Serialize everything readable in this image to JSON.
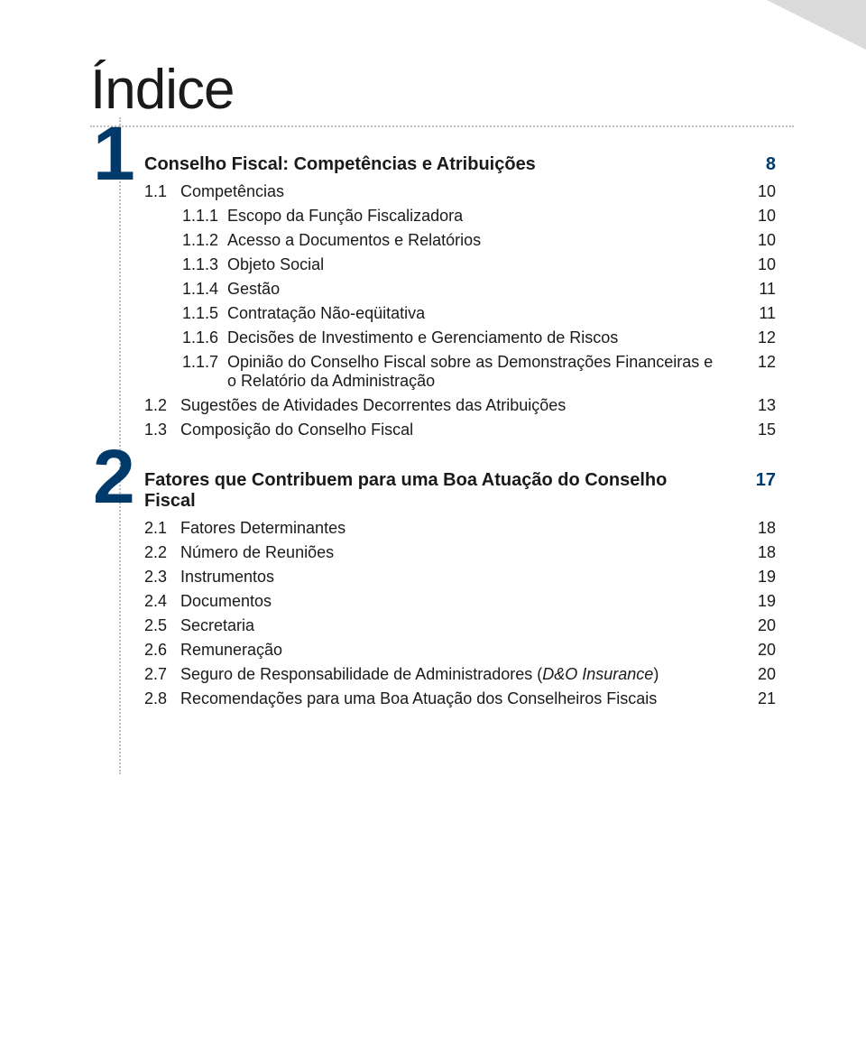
{
  "title": "Índice",
  "colors": {
    "accent": "#003a6b",
    "text": "#1a1a1a",
    "rule": "#bfbfbf",
    "corner": "#a6a6a6",
    "background": "#ffffff"
  },
  "chapters": [
    {
      "number": "1",
      "heading": {
        "label": "Conselho Fiscal: Competências e Atribuições",
        "page": "8"
      },
      "rows": [
        {
          "level": 1,
          "num": "1.1",
          "label": "Competências",
          "page": "10"
        },
        {
          "level": 2,
          "num": "1.1.1",
          "label": "Escopo da Função Fiscalizadora",
          "page": "10"
        },
        {
          "level": 2,
          "num": "1.1.2",
          "label": "Acesso a Documentos e Relatórios",
          "page": "10"
        },
        {
          "level": 2,
          "num": "1.1.3",
          "label": "Objeto Social",
          "page": "10"
        },
        {
          "level": 2,
          "num": "1.1.4",
          "label": "Gestão",
          "page": "11"
        },
        {
          "level": 2,
          "num": "1.1.5",
          "label": "Contratação Não-eqüitativa",
          "page": "11"
        },
        {
          "level": 2,
          "num": "1.1.6",
          "label": "Decisões de Investimento e Gerenciamento de Riscos",
          "page": "12"
        },
        {
          "level": 2,
          "num": "1.1.7",
          "label": "Opinião do Conselho Fiscal sobre as Demonstrações Financeiras e o Relatório da Administração",
          "page": "12"
        },
        {
          "level": 1,
          "num": "1.2",
          "label": "Sugestões de Atividades Decorrentes das Atribuições",
          "page": "13"
        },
        {
          "level": 1,
          "num": "1.3",
          "label": "Composição do Conselho Fiscal",
          "page": "15"
        }
      ]
    },
    {
      "number": "2",
      "heading": {
        "label": "Fatores que Contribuem para uma Boa Atuação do Conselho Fiscal",
        "page": "17"
      },
      "rows": [
        {
          "level": 1,
          "num": "2.1",
          "label": "Fatores Determinantes",
          "page": "18"
        },
        {
          "level": 1,
          "num": "2.2",
          "label": "Número de Reuniões",
          "page": "18"
        },
        {
          "level": 1,
          "num": "2.3",
          "label": "Instrumentos",
          "page": "19"
        },
        {
          "level": 1,
          "num": "2.4",
          "label": "Documentos",
          "page": "19"
        },
        {
          "level": 1,
          "num": "2.5",
          "label": "Secretaria",
          "page": "20"
        },
        {
          "level": 1,
          "num": "2.6",
          "label": "Remuneração",
          "page": "20"
        },
        {
          "level": 1,
          "num": "2.7",
          "label_html": "Seguro de Responsabilidade de Administradores (<span class=\"italic\">D&O Insurance</span>)",
          "page": "20"
        },
        {
          "level": 1,
          "num": "2.8",
          "label": "Recomendações para uma Boa Atuação dos Conselheiros Fiscais",
          "page": "21"
        }
      ]
    }
  ]
}
